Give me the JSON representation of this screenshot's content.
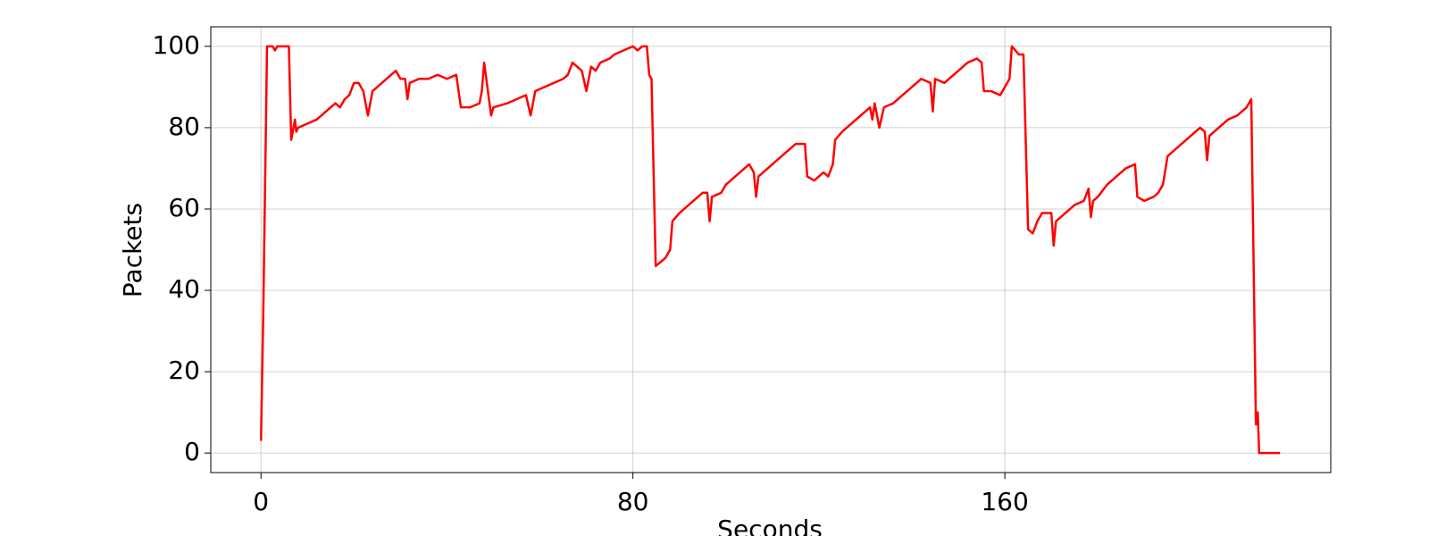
{
  "chart_data": {
    "type": "line",
    "xlabel": "Seconds",
    "ylabel": "Packets",
    "xlim": [
      -10.8,
      230.1
    ],
    "ylim": [
      -4.8,
      104.8
    ],
    "xticks": [
      0,
      80,
      160
    ],
    "yticks": [
      0,
      20,
      40,
      60,
      80,
      100
    ],
    "grid": true,
    "series": [
      {
        "color": "#ff0000",
        "x": [
          0,
          0.5,
          1.3,
          2.5,
          3,
          3.5,
          6,
          6.5,
          7.3,
          7.6,
          8,
          10,
          12,
          14,
          16,
          17,
          18,
          19,
          20,
          21,
          22,
          23,
          24,
          25,
          27,
          28,
          29,
          30,
          31,
          31.5,
          32,
          34,
          36,
          38,
          40,
          42,
          43,
          45,
          47,
          47.5,
          48,
          49.5,
          50,
          53,
          55,
          57,
          58,
          59,
          61,
          63,
          65,
          66,
          67,
          69,
          70,
          71,
          72,
          73,
          75,
          76,
          78,
          80,
          81,
          82,
          83,
          83.5,
          84,
          84.9,
          86,
          87,
          88,
          88.5,
          90,
          92,
          94,
          95,
          96,
          96.5,
          97,
          99,
          100,
          102,
          104,
          105,
          106,
          106.5,
          107,
          109,
          111,
          113,
          115,
          117,
          117.5,
          119,
          121,
          122,
          123,
          123.5,
          125,
          127,
          129,
          131,
          131.5,
          132,
          133,
          134,
          136,
          138,
          140,
          142,
          144,
          144.5,
          145,
          147,
          149,
          150,
          152,
          154,
          155,
          155.5,
          157,
          159,
          160,
          161,
          161.5,
          163,
          164,
          165,
          166,
          167,
          168,
          170,
          170.5,
          171,
          173,
          175,
          177,
          178,
          178.5,
          179,
          180,
          182,
          184,
          186,
          188,
          188.5,
          190,
          192,
          193,
          194,
          195,
          197,
          199,
          201,
          202,
          203,
          203.5,
          204,
          206,
          208,
          210,
          212,
          213,
          214,
          214.4,
          214.7,
          215,
          219.2
        ],
        "values": [
          3,
          35,
          100,
          100,
          99,
          100,
          100,
          77,
          82,
          79,
          80,
          81,
          82,
          84,
          86,
          85,
          87,
          88,
          91,
          91,
          89,
          83,
          89,
          90,
          92,
          93,
          94,
          92,
          92,
          87,
          91,
          92,
          92,
          93,
          92,
          93,
          85,
          85,
          86,
          89,
          96,
          83,
          85,
          86,
          87,
          88,
          83,
          89,
          90,
          91,
          92,
          93,
          96,
          94,
          89,
          95,
          94,
          96,
          97,
          98,
          99,
          100,
          99,
          100,
          100,
          93,
          92,
          46,
          47,
          48,
          50,
          57,
          59,
          61,
          63,
          64,
          64,
          57,
          63,
          64,
          66,
          68,
          70,
          71,
          69,
          63,
          68,
          70,
          72,
          74,
          76,
          76,
          68,
          67,
          69,
          68,
          71,
          77,
          79,
          81,
          83,
          85,
          82,
          86,
          80,
          85,
          86,
          88,
          90,
          92,
          91,
          84,
          92,
          91,
          93,
          94,
          96,
          97,
          96,
          89,
          89,
          88,
          90,
          92,
          100,
          98,
          98,
          55,
          54,
          57,
          59,
          59,
          51,
          57,
          59,
          61,
          62,
          65,
          58,
          62,
          63,
          66,
          68,
          70,
          71,
          63,
          62,
          63,
          64,
          66,
          73,
          75,
          77,
          79,
          80,
          79,
          72,
          78,
          80,
          82,
          83,
          85,
          87,
          7,
          10,
          0,
          0,
          0
        ]
      }
    ]
  }
}
